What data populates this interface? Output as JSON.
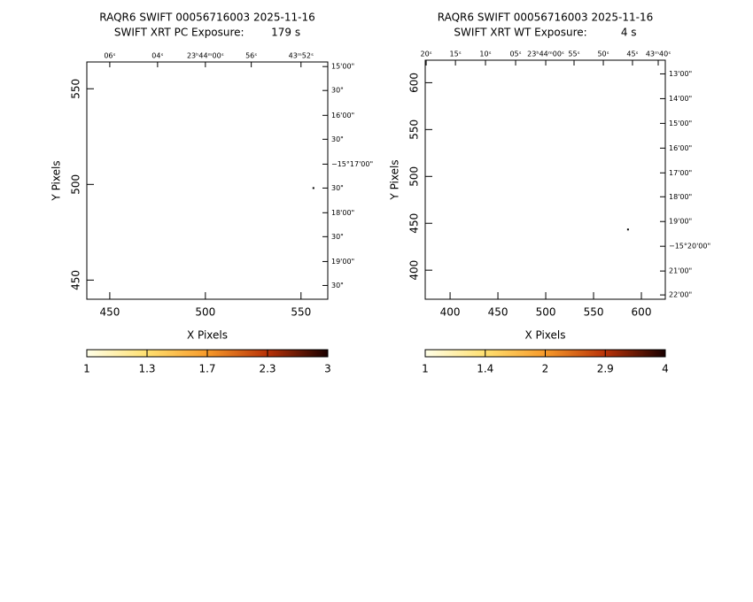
{
  "chart_data": [
    {
      "type": "image",
      "title": "RAQR6 SWIFT 00056716003 2025-11-16",
      "subtitle": "SWIFT XRT PC Exposure:        179 s",
      "x_label": "X Pixels",
      "y_label": "Y Pixels",
      "xlim": [
        438,
        564
      ],
      "ylim": [
        440,
        564
      ],
      "xticks": [
        450,
        500,
        550
      ],
      "yticks": [
        450,
        500,
        550
      ],
      "top_ticks": [
        {
          "value": 450,
          "label": "06ˢ"
        },
        {
          "value": 475,
          "label": "04ˢ"
        },
        {
          "value": 500,
          "label": "23ʰ44ᵐ00ˢ"
        },
        {
          "value": 524,
          "label": "56ˢ"
        },
        {
          "value": 550,
          "label": "43ᵐ52ˢ"
        }
      ],
      "right_ticks": [
        {
          "value": 561.6,
          "label": "15'00\""
        },
        {
          "value": 549.1,
          "label": "30\""
        },
        {
          "value": 536.1,
          "label": "16'00\""
        },
        {
          "value": 523.6,
          "label": "30\""
        },
        {
          "value": 510.6,
          "label": "−15°17'00\""
        },
        {
          "value": 498.1,
          "label": "30\""
        },
        {
          "value": 485.2,
          "label": "18'00\""
        },
        {
          "value": 472.7,
          "label": "30\""
        },
        {
          "value": 459.7,
          "label": "19'00\""
        },
        {
          "value": 447.2,
          "label": "30\""
        }
      ],
      "points": {
        "x": [
          556.5
        ],
        "y": [
          498.1
        ]
      },
      "colorbar_ticks": [
        1,
        1.3,
        1.7,
        2.3,
        3
      ]
    },
    {
      "type": "image",
      "title": "RAQR6 SWIFT 00056716003 2025-11-16",
      "subtitle": "SWIFT XRT WT Exposure:          4 s",
      "x_label": "X Pixels",
      "y_label": "Y Pixels",
      "xlim": [
        374,
        625
      ],
      "ylim": [
        369,
        624
      ],
      "xticks": [
        400,
        450,
        500,
        550,
        600
      ],
      "yticks": [
        400,
        450,
        500,
        550,
        600
      ],
      "top_ticks": [
        {
          "value": 375,
          "label": "20ˢ"
        },
        {
          "value": 405.6,
          "label": "15ˢ"
        },
        {
          "value": 437,
          "label": "10ˢ"
        },
        {
          "value": 468.5,
          "label": "05ˢ"
        },
        {
          "value": 500,
          "label": "23ʰ44ᵐ00ˢ"
        },
        {
          "value": 529.6,
          "label": "55ˢ"
        },
        {
          "value": 560.2,
          "label": "50ˢ"
        },
        {
          "value": 590.7,
          "label": "45ˢ"
        },
        {
          "value": 617.6,
          "label": "43ᵐ40ˢ"
        }
      ],
      "right_ticks": [
        {
          "value": 609.4,
          "label": "13'00\""
        },
        {
          "value": 583,
          "label": "14'00\""
        },
        {
          "value": 556.6,
          "label": "15'00\""
        },
        {
          "value": 530.2,
          "label": "16'00\""
        },
        {
          "value": 503.8,
          "label": "17'00\""
        },
        {
          "value": 478.3,
          "label": "18'00\""
        },
        {
          "value": 451.9,
          "label": "19'00\""
        },
        {
          "value": 425.5,
          "label": "−15°20'00\""
        },
        {
          "value": 399.1,
          "label": "21'00\""
        },
        {
          "value": 373.6,
          "label": "22'00\""
        }
      ],
      "points": {
        "x": [
          586
        ],
        "y": [
          443.4
        ]
      },
      "colorbar_ticks": [
        1,
        1.4,
        2,
        2.9,
        4
      ]
    }
  ]
}
